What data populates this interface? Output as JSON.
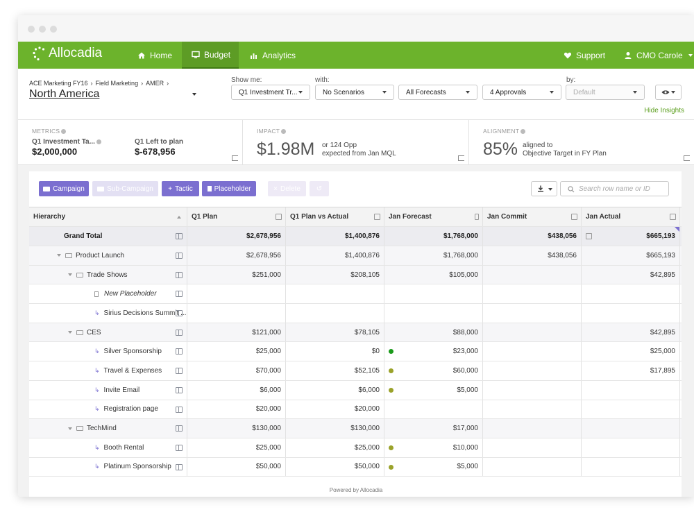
{
  "nav": {
    "brand": "Allocadia",
    "items": [
      {
        "label": "Home",
        "icon": "home-icon"
      },
      {
        "label": "Budget",
        "icon": "monitor-icon"
      },
      {
        "label": "Analytics",
        "icon": "bar-chart-icon"
      }
    ],
    "support": "Support",
    "user": "CMO Carole"
  },
  "breadcrumb": [
    "ACE Marketing FY16",
    "Field Marketing",
    "AMER"
  ],
  "region": "North America",
  "filters": {
    "show_me_label": "Show me:",
    "with_label": "with:",
    "by_label": "by:",
    "show_me": "Q1 Investment Tr...",
    "scenarios": "No Scenarios",
    "forecasts": "All Forecasts",
    "approvals": "4 Approvals",
    "by": "Default"
  },
  "hide_insights": "Hide Insights",
  "insights": {
    "metrics": {
      "title": "METRICS",
      "label1": "Q1 Investment Ta...",
      "value1": "$2,000,000",
      "label2": "Q1 Left to plan",
      "value2": "$-678,956"
    },
    "impact": {
      "title": "IMPACT",
      "big": "$1.98M",
      "line1_prefix": "or",
      "line1_value": "124 Opp",
      "line2_prefix": "expected from",
      "line2_value": "Jan MQL"
    },
    "alignment": {
      "title": "ALIGNMENT",
      "big": "85%",
      "line1": "aligned to",
      "line2_value": "Objective Target",
      "line2_mid": "in",
      "line2_end": "FY Plan"
    }
  },
  "toolbar": {
    "campaign": "Campaign",
    "subcampaign": "Sub-Campaign",
    "tactic": "Tactic",
    "placeholder": "Placeholder",
    "delete": "Delete",
    "search_placeholder": "Search row name or ID"
  },
  "table": {
    "columns": [
      "Hierarchy",
      "Q1 Plan",
      "Q1 Plan vs Actual",
      "Jan Forecast",
      "Jan Commit",
      "Jan Actual"
    ],
    "grand_total": {
      "name": "Grand Total",
      "q1_plan": "$2,678,956",
      "q1_vs_actual": "$1,400,876",
      "jan_forecast": "$1,768,000",
      "jan_commit": "$438,056",
      "jan_actual": "$665,193"
    },
    "rows": [
      {
        "name": "Product Launch",
        "type": "group",
        "indent": 1,
        "q1_plan": "$2,678,956",
        "q1_vs_actual": "$1,400,876",
        "jan_forecast": "$1,768,000",
        "jan_commit": "$438,056",
        "jan_actual": "$665,193",
        "status": ""
      },
      {
        "name": "Trade Shows",
        "type": "sub",
        "indent": 2,
        "q1_plan": "$251,000",
        "q1_vs_actual": "$208,105",
        "jan_forecast": "$105,000",
        "jan_commit": "",
        "jan_actual": "$42,895",
        "status": ""
      },
      {
        "name": "New Placeholder",
        "type": "placeholder",
        "indent": 3,
        "q1_plan": "",
        "q1_vs_actual": "",
        "jan_forecast": "",
        "jan_commit": "",
        "jan_actual": "",
        "status": ""
      },
      {
        "name": "Sirius Decisions Summit ...",
        "type": "leaf",
        "indent": 3,
        "q1_plan": "",
        "q1_vs_actual": "",
        "jan_forecast": "",
        "jan_commit": "",
        "jan_actual": "",
        "status": ""
      },
      {
        "name": "CES",
        "type": "group",
        "indent": 2,
        "q1_plan": "$121,000",
        "q1_vs_actual": "$78,105",
        "jan_forecast": "$88,000",
        "jan_commit": "",
        "jan_actual": "$42,895",
        "status": ""
      },
      {
        "name": "Silver Sponsorship",
        "type": "leaf",
        "indent": 3,
        "q1_plan": "$25,000",
        "q1_vs_actual": "$0",
        "jan_forecast": "$23,000",
        "jan_commit": "",
        "jan_actual": "$25,000",
        "status": "#1a9a1a"
      },
      {
        "name": "Travel & Expenses",
        "type": "leaf",
        "indent": 3,
        "q1_plan": "$70,000",
        "q1_vs_actual": "$52,105",
        "jan_forecast": "$60,000",
        "jan_commit": "",
        "jan_actual": "$17,895",
        "status": "#9aa22a"
      },
      {
        "name": "Invite Email",
        "type": "leaf",
        "indent": 3,
        "q1_plan": "$6,000",
        "q1_vs_actual": "$6,000",
        "jan_forecast": "$5,000",
        "jan_commit": "",
        "jan_actual": "",
        "status": "#9aa22a"
      },
      {
        "name": "Registration page",
        "type": "leaf",
        "indent": 3,
        "q1_plan": "$20,000",
        "q1_vs_actual": "$20,000",
        "jan_forecast": "",
        "jan_commit": "",
        "jan_actual": "",
        "status": ""
      },
      {
        "name": "TechMind",
        "type": "group",
        "indent": 2,
        "q1_plan": "$130,000",
        "q1_vs_actual": "$130,000",
        "jan_forecast": "$17,000",
        "jan_commit": "",
        "jan_actual": "",
        "status": ""
      },
      {
        "name": "Booth Rental",
        "type": "leaf",
        "indent": 3,
        "q1_plan": "$25,000",
        "q1_vs_actual": "$25,000",
        "jan_forecast": "$10,000",
        "jan_commit": "",
        "jan_actual": "",
        "status": "#9aa22a"
      },
      {
        "name": "Platinum Sponsorship",
        "type": "leaf",
        "indent": 3,
        "q1_plan": "$50,000",
        "q1_vs_actual": "$50,000",
        "jan_forecast": "$5,000",
        "jan_commit": "",
        "jan_actual": "",
        "status": "#9aa22a"
      }
    ]
  },
  "footer": "Powered by Allocadia"
}
